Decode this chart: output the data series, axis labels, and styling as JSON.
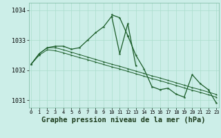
{
  "title": "Graphe pression niveau de la mer (hPa)",
  "background_color": "#cceee8",
  "grid_color": "#aaddcc",
  "line_color": "#1a5c28",
  "hours": [
    0,
    1,
    2,
    3,
    4,
    5,
    6,
    7,
    8,
    9,
    10,
    11,
    12,
    13,
    14,
    15,
    16,
    17,
    18,
    19,
    20,
    21,
    22,
    23
  ],
  "series1": [
    1032.2,
    1032.55,
    1032.75,
    1032.8,
    1032.8,
    1032.7,
    1032.75,
    1033.0,
    1033.25,
    1033.45,
    1033.8,
    1032.55,
    1033.55,
    1032.15,
    null,
    null,
    null,
    null,
    null,
    null,
    null,
    null,
    null,
    null
  ],
  "series2": [
    null,
    null,
    null,
    null,
    null,
    null,
    null,
    null,
    null,
    null,
    1033.85,
    1033.75,
    1033.15,
    null,
    null,
    null,
    null,
    null,
    null,
    null,
    null,
    null,
    null,
    null
  ],
  "series3": [
    null,
    null,
    null,
    null,
    null,
    null,
    null,
    null,
    null,
    null,
    null,
    null,
    1033.15,
    1032.5,
    1032.05,
    1031.45,
    1031.35,
    1031.4,
    1031.2,
    1031.1,
    1031.85,
    1031.55,
    1031.35,
    1030.9
  ],
  "series4": [
    1032.2,
    1032.55,
    1032.75,
    1032.75,
    1032.68,
    1032.6,
    1032.52,
    1032.44,
    1032.36,
    1032.28,
    1032.2,
    1032.13,
    1032.05,
    1031.97,
    1031.89,
    1031.81,
    1031.74,
    1031.66,
    1031.58,
    1031.5,
    1031.42,
    1031.35,
    1031.27,
    1031.19
  ],
  "series5": [
    1032.2,
    1032.5,
    1032.68,
    1032.65,
    1032.58,
    1032.5,
    1032.42,
    1032.35,
    1032.27,
    1032.19,
    1032.11,
    1032.04,
    1031.96,
    1031.88,
    1031.8,
    1031.72,
    1031.65,
    1031.57,
    1031.49,
    1031.41,
    1031.33,
    1031.26,
    1031.18,
    1031.1
  ],
  "ylim": [
    1030.75,
    1034.25
  ],
  "yticks": [
    1031,
    1032,
    1033,
    1034
  ],
  "xlim": [
    -0.3,
    23.3
  ],
  "title_fontsize": 7.5,
  "tick_fontsize": 5.0,
  "ytick_fontsize": 6.0
}
